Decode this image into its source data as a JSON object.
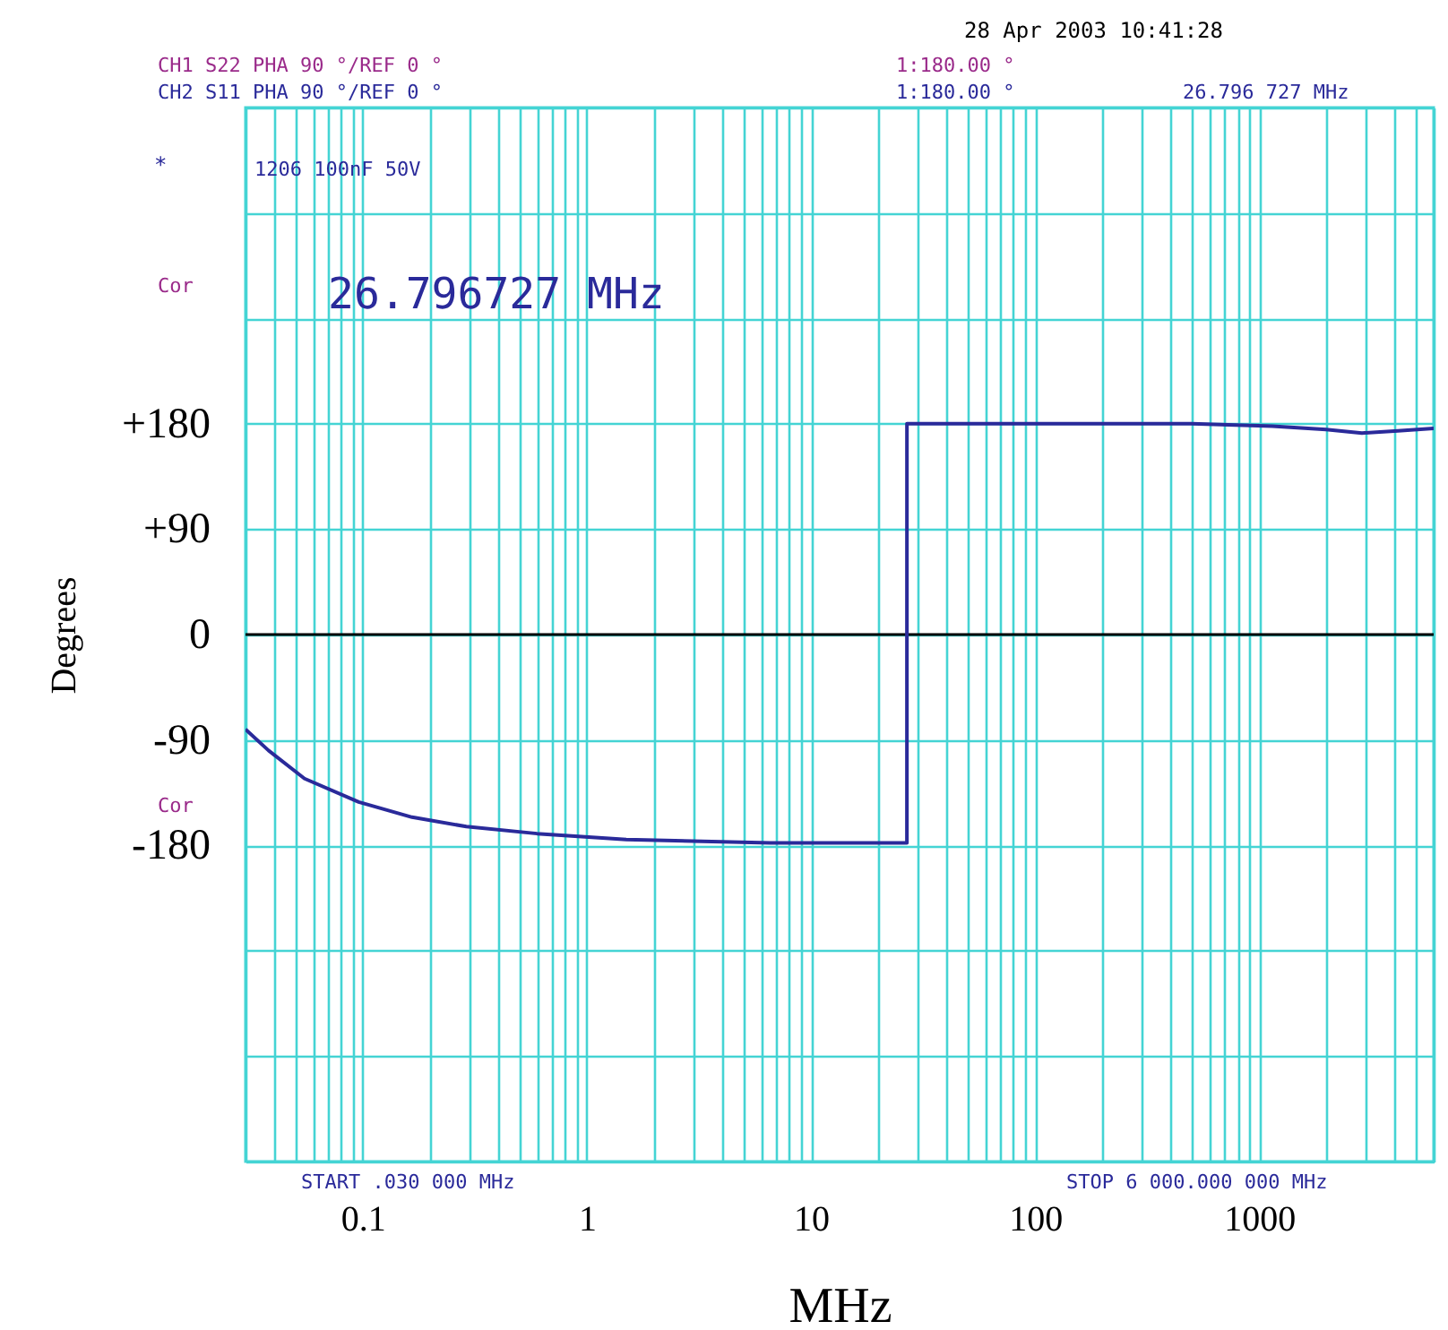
{
  "chart_data": {
    "type": "line",
    "xlabel": "MHz",
    "ylabel": "Degrees",
    "annotations": [
      "28 Apr 2003  10:41:28",
      "CH1  S22    PHA       90 °/REF 0 °",
      "1:180.00 °",
      "CH2  S11    PHA       90 °/REF 0 °",
      "1:180.00 °",
      "26.796 727 MHz",
      "*",
      "1206 100nF 50V",
      "Cor",
      "26.796727 MHz",
      "Cor",
      "START  .030 000 MHz",
      "STOP 6 000.000 000 MHz"
    ],
    "log": "x",
    "grid": true,
    "legend": false,
    "marker": "none",
    "line_style": "solid",
    "xlim": [
      0.03,
      6000
    ],
    "xticks": [
      {
        "value": 0.03,
        "label": null
      },
      {
        "value": 0.04,
        "label": null
      },
      {
        "value": 0.05,
        "label": null
      },
      {
        "value": 0.06,
        "label": null
      },
      {
        "value": 0.07,
        "label": null
      },
      {
        "value": 0.08,
        "label": null
      },
      {
        "value": 0.09,
        "label": null
      },
      0.1,
      {
        "value": 0.2,
        "label": null
      },
      {
        "value": 0.3,
        "label": null
      },
      {
        "value": 0.4,
        "label": null
      },
      {
        "value": 0.5,
        "label": null
      },
      {
        "value": 0.6,
        "label": null
      },
      {
        "value": 0.7,
        "label": null
      },
      {
        "value": 0.8,
        "label": null
      },
      {
        "value": 0.9,
        "label": null
      },
      1,
      {
        "value": 2,
        "label": null
      },
      {
        "value": 3,
        "label": null
      },
      {
        "value": 4,
        "label": null
      },
      {
        "value": 5,
        "label": null
      },
      {
        "value": 6,
        "label": null
      },
      {
        "value": 7,
        "label": null
      },
      {
        "value": 8,
        "label": null
      },
      {
        "value": 9,
        "label": null
      },
      10,
      {
        "value": 20,
        "label": null
      },
      {
        "value": 30,
        "label": null
      },
      {
        "value": 40,
        "label": null
      },
      {
        "value": 50,
        "label": null
      },
      {
        "value": 60,
        "label": null
      },
      {
        "value": 70,
        "label": null
      },
      {
        "value": 80,
        "label": null
      },
      {
        "value": 90,
        "label": null
      },
      100,
      {
        "value": 200,
        "label": null
      },
      {
        "value": 300,
        "label": null
      },
      {
        "value": 400,
        "label": null
      },
      {
        "value": 500,
        "label": null
      },
      {
        "value": 600,
        "label": null
      },
      {
        "value": 700,
        "label": null
      },
      {
        "value": 800,
        "label": null
      },
      {
        "value": 900,
        "label": null
      },
      1000,
      {
        "value": 2000,
        "label": null
      },
      {
        "value": 3000,
        "label": null
      },
      {
        "value": 4000,
        "label": null
      },
      {
        "value": 5000,
        "label": null
      },
      {
        "value": 6000,
        "label": null
      }
    ],
    "ylim": [
      -450,
      450
    ],
    "yticks": [
      {
        "value": -450,
        "label": null
      },
      {
        "value": -360,
        "label": null
      },
      {
        "value": -270,
        "label": null
      },
      {
        "value": -180,
        "label": "-180"
      },
      {
        "value": -90,
        "label": "-90"
      },
      {
        "value": 0,
        "label": "0"
      },
      {
        "value": 90,
        "label": "+90"
      },
      {
        "value": 180,
        "label": "+180"
      },
      {
        "value": 270,
        "label": null
      },
      {
        "value": 360,
        "label": null
      },
      {
        "value": 450,
        "label": null
      }
    ],
    "ref_lines": [
      {
        "axis": "y",
        "value": 0,
        "color": "#000000"
      }
    ],
    "series": [
      {
        "color": "#2a2a9a",
        "x": [
          0.03,
          0.038,
          0.055,
          0.096,
          0.166,
          0.29,
          0.6,
          1.5,
          6.6,
          26.79,
          26.8,
          500,
          1144,
          1988,
          2872,
          4150,
          6000
        ],
        "values": [
          -81,
          -99,
          -123,
          -143,
          -156,
          -164,
          -170,
          -175,
          -178,
          -178,
          180,
          180,
          178,
          175,
          172,
          174,
          176
        ]
      }
    ]
  }
}
